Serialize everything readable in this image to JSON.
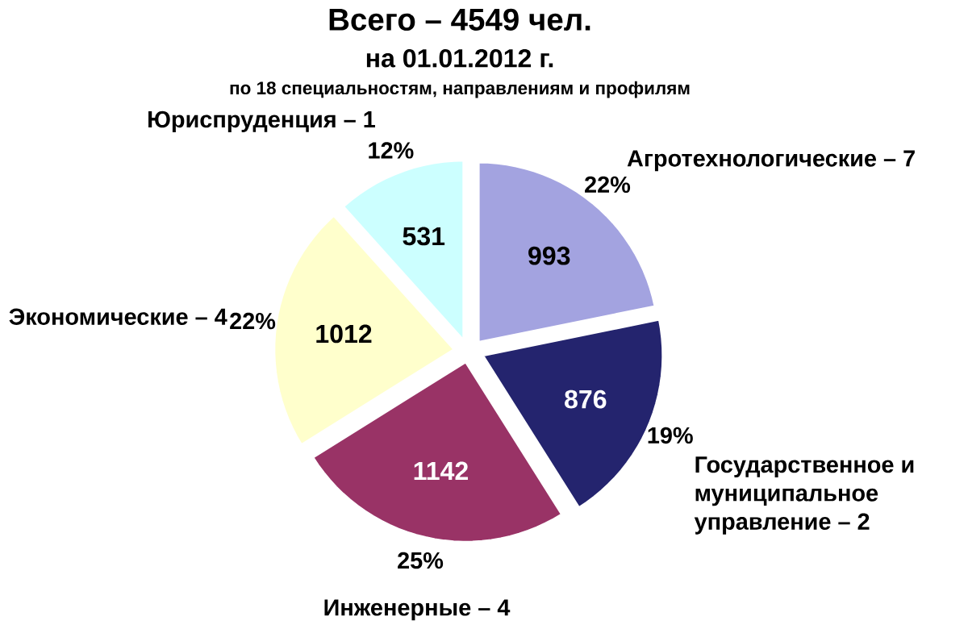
{
  "chart_data": {
    "type": "pie",
    "title": "Всего – 4549 чел.",
    "subtitle": "на 01.01.2012 г.",
    "categories": [
      "Агротехнологические – 7",
      "Государственное и муниципальное управление – 2",
      "Инженерные – 4",
      "Экономические – 4",
      "Юриспруденция – 1"
    ],
    "values": [
      993,
      876,
      1142,
      1012,
      531
    ],
    "colors": [
      "#a3a3e0",
      "#24246e",
      "#993366",
      "#ffffcc",
      "#ccffff"
    ],
    "data_labels": true,
    "annotations": [
      "по 18 специальностям, направлениям и профилям",
      "22%",
      "19%",
      "25%",
      "22%",
      "12%"
    ]
  }
}
